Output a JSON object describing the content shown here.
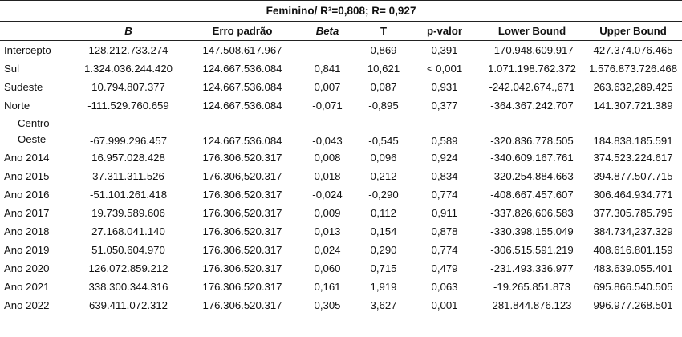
{
  "title": "Feminino/ R²=0,808; R= 0,927",
  "columns": [
    "",
    "B",
    "Erro padrão",
    "Beta",
    "T",
    "p-valor",
    "Lower Bound",
    "Upper Bound"
  ],
  "rows": [
    {
      "label": "Intercepto",
      "B": "128.212.733.274",
      "se": "147.508.617.967",
      "beta": "",
      "t": "0,869",
      "p": "0,391",
      "lower": "-170.948.609.917",
      "upper": "427.374.076.465"
    },
    {
      "label": "Sul",
      "B": "1.324.036.244.420",
      "se": "124.667.536.084",
      "beta": "0,841",
      "t": "10,621",
      "p": "< 0,001",
      "lower": "1.071.198.762.372",
      "upper": "1.576.873.726.468"
    },
    {
      "label": "Sudeste",
      "B": "10.794.807.377",
      "se": "124.667.536.084",
      "beta": "0,007",
      "t": "0,087",
      "p": "0,931",
      "lower": "-242.042.674.,671",
      "upper": "263.632,289.425"
    },
    {
      "label": "Norte",
      "B": "-111.529.760.659",
      "se": "124.667.536.084",
      "beta": "-0,071",
      "t": "-0,895",
      "p": "0,377",
      "lower": "-364.367.242.707",
      "upper": "141.307.721.389"
    },
    {
      "label": "Centro-Oeste",
      "label_l1": "Centro-",
      "label_l2": "Oeste",
      "B": "-67.999.296.457",
      "se": "124.667.536.084",
      "beta": "-0,043",
      "t": "-0,545",
      "p": "0,589",
      "lower": "-320.836.778.505",
      "upper": "184.838.185.591"
    },
    {
      "label": "Ano 2014",
      "B": "16.957.028.428",
      "se": "176.306.520.317",
      "beta": "0,008",
      "t": "0,096",
      "p": "0,924",
      "lower": "-340.609.167.761",
      "upper": "374.523.224.617"
    },
    {
      "label": "Ano 2015",
      "B": "37.311.311.526",
      "se": "176.306,520.317",
      "beta": "0,018",
      "t": "0,212",
      "p": "0,834",
      "lower": "-320.254.884.663",
      "upper": "394.877.507.715"
    },
    {
      "label": "Ano 2016",
      "B": "-51.101.261.418",
      "se": "176.306.520.317",
      "beta": "-0,024",
      "t": "-0,290",
      "p": "0,774",
      "lower": "-408.667.457.607",
      "upper": "306.464.934.771"
    },
    {
      "label": "Ano 2017",
      "B": "19.739.589.606",
      "se": "176.306,520.317",
      "beta": "0,009",
      "t": "0,112",
      "p": "0,911",
      "lower": "-337.826,606.583",
      "upper": "377.305.785.795"
    },
    {
      "label": "Ano 2018",
      "B": "27.168.041.140",
      "se": "176.306.520.317",
      "beta": "0,013",
      "t": "0,154",
      "p": "0,878",
      "lower": "-330.398.155.049",
      "upper": "384.734,237.329"
    },
    {
      "label": "Ano 2019",
      "B": "51.050.604.970",
      "se": "176.306.520.317",
      "beta": "0,024",
      "t": "0,290",
      "p": "0,774",
      "lower": "-306.515.591.219",
      "upper": "408.616.801.159"
    },
    {
      "label": "Ano 2020",
      "B": "126.072.859.212",
      "se": "176.306.520.317",
      "beta": "0,060",
      "t": "0,715",
      "p": "0,479",
      "lower": "-231.493.336.977",
      "upper": "483.639.055.401"
    },
    {
      "label": "Ano 2021",
      "B": "338.300.344.316",
      "se": "176.306.520.317",
      "beta": "0,161",
      "t": "1,919",
      "p": "0,063",
      "lower": "-19.265.851.873",
      "upper": "695.866.540.505"
    },
    {
      "label": "Ano 2022",
      "B": "639.411.072.312",
      "se": "176.306.520.317",
      "beta": "0,305",
      "t": "3,627",
      "p": "0,001",
      "lower": "281.844.876.123",
      "upper": "996.977.268.501"
    }
  ]
}
